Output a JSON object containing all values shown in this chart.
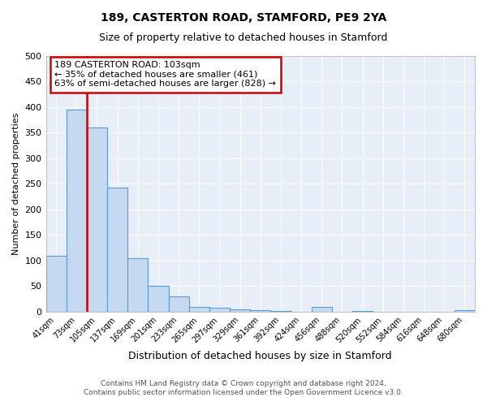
{
  "title": "189, CASTERTON ROAD, STAMFORD, PE9 2YA",
  "subtitle": "Size of property relative to detached houses in Stamford",
  "xlabel": "Distribution of detached houses by size in Stamford",
  "ylabel": "Number of detached properties",
  "bin_labels": [
    "41sqm",
    "73sqm",
    "105sqm",
    "137sqm",
    "169sqm",
    "201sqm",
    "233sqm",
    "265sqm",
    "297sqm",
    "329sqm",
    "361sqm",
    "392sqm",
    "424sqm",
    "456sqm",
    "488sqm",
    "520sqm",
    "552sqm",
    "584sqm",
    "616sqm",
    "648sqm",
    "680sqm"
  ],
  "bar_heights": [
    110,
    395,
    360,
    243,
    105,
    50,
    30,
    9,
    8,
    4,
    3,
    1,
    0,
    10,
    0,
    1,
    0,
    0,
    0,
    0,
    3
  ],
  "bar_color": "#c5d9f1",
  "bar_edge_color": "#5b9bd5",
  "vline_x_index": 1,
  "vline_color": "#cc0000",
  "annotation_text": "189 CASTERTON ROAD: 103sqm\n← 35% of detached houses are smaller (461)\n63% of semi-detached houses are larger (828) →",
  "annotation_box_color": "#ffffff",
  "annotation_box_edge": "#cc0000",
  "ylim": [
    0,
    500
  ],
  "yticks": [
    0,
    50,
    100,
    150,
    200,
    250,
    300,
    350,
    400,
    450,
    500
  ],
  "plot_bg_color": "#e8eef8",
  "fig_bg_color": "#ffffff",
  "grid_color": "#ffffff",
  "footer_line1": "Contains HM Land Registry data © Crown copyright and database right 2024.",
  "footer_line2": "Contains public sector information licensed under the Open Government Licence v3.0."
}
